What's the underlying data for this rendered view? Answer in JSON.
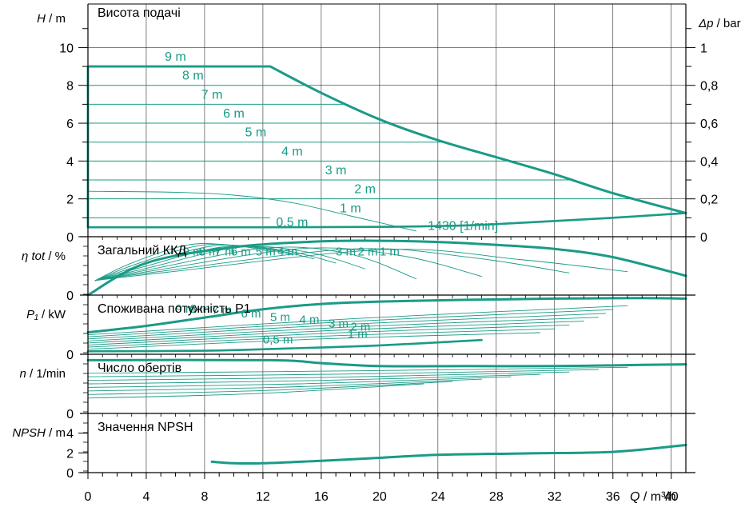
{
  "colors": {
    "curve": "#1a9b86",
    "axis": "#000000",
    "grid": "#000000",
    "background": "#ffffff"
  },
  "chart_data": {
    "type": "line",
    "x_axis": {
      "symbol": "Q",
      "unit": "/ m³/h",
      "range": [
        0,
        41
      ],
      "ticks": [
        0,
        4,
        8,
        12,
        16,
        20,
        24,
        28,
        32,
        36,
        40
      ],
      "tick_labels": [
        "0",
        "4",
        "8",
        "12",
        "16",
        "20",
        "24",
        "28",
        "32",
        "36",
        "40"
      ]
    },
    "panels": [
      {
        "id": "head",
        "title": "Висота подачі",
        "y_symbol": "H",
        "y_unit": "/ m",
        "y_range": [
          0,
          12.3
        ],
        "y_ticks": [
          0,
          2,
          4,
          6,
          8,
          10
        ],
        "y_tick_labels": [
          "0",
          "2",
          "4",
          "6",
          "8",
          "10"
        ],
        "y2_symbol": "Δp",
        "y2_unit": "/ bar",
        "y2_range": [
          0,
          1.23
        ],
        "y2_ticks": [
          0,
          0.2,
          0.4,
          0.6,
          0.8,
          1
        ],
        "y2_tick_labels": [
          "0",
          "0,2",
          "0,4",
          "0,6",
          "0,8",
          "1"
        ],
        "setpoint_lines": [
          {
            "label": "9 m",
            "head": 9
          },
          {
            "label": "8 m",
            "head": 8
          },
          {
            "label": "7 m",
            "head": 7
          },
          {
            "label": "6 m",
            "head": 6
          },
          {
            "label": "5 m",
            "head": 5
          },
          {
            "label": "4 m",
            "head": 4
          },
          {
            "label": "3 m",
            "head": 3
          },
          {
            "label": "2 m",
            "head": 2
          },
          {
            "label": "1 m",
            "head": 1
          },
          {
            "label": "0,5 m",
            "head": 0.5
          }
        ],
        "max_curve": {
          "x": [
            0,
            12.5,
            16,
            20,
            24,
            28,
            32,
            36,
            41
          ],
          "y": [
            9,
            9,
            7.6,
            6.2,
            5.1,
            4.2,
            3.3,
            2.3,
            1.25
          ]
        },
        "min_curve": {
          "x": [
            0,
            12,
            20,
            26,
            30,
            36,
            41
          ],
          "y": [
            0.5,
            0.5,
            0.52,
            0.6,
            0.75,
            1.0,
            1.25
          ]
        },
        "speed_curve": {
          "label": "1430 [1/min]",
          "x": [
            0,
            6,
            10,
            14,
            18,
            22.5
          ],
          "y": [
            2.4,
            2.35,
            2.2,
            1.8,
            1.1,
            0.3
          ]
        }
      },
      {
        "id": "efficiency",
        "title": "Загальний ККД",
        "y_symbol": "η tot",
        "y_unit": "/ %",
        "y_range": [
          0,
          1
        ],
        "y_ticks": [
          0
        ],
        "y_tick_labels": [
          "0"
        ],
        "curve_labels": [
          "9 m",
          "8 m",
          "7 m",
          "6 m",
          "5 m",
          "4 m",
          "3 m",
          "2 m",
          "1 m"
        ],
        "max_curve": {
          "x": [
            0,
            4,
            10,
            16,
            20,
            24,
            28,
            32,
            36,
            41
          ],
          "y": [
            0,
            0.55,
            0.82,
            0.92,
            0.93,
            0.91,
            0.86,
            0.79,
            0.65,
            0.33
          ]
        }
      },
      {
        "id": "power",
        "title": "Споживана потужність P1",
        "y_symbol": "P₁",
        "y_unit": "/ kW",
        "y_range": [
          0,
          1
        ],
        "y_ticks": [
          0
        ],
        "y_tick_labels": [
          "0"
        ],
        "curve_labels": [
          "9 m",
          "8 m",
          "7 m",
          "6 m",
          "5 m",
          "4 m",
          "3 m",
          "2 m",
          "1 m",
          "0,5 m"
        ],
        "max_curve": {
          "x": [
            0,
            4,
            8,
            12,
            16,
            20,
            26,
            32,
            38,
            41
          ],
          "y": [
            0.37,
            0.48,
            0.62,
            0.76,
            0.85,
            0.89,
            0.92,
            0.94,
            0.95,
            0.94
          ]
        },
        "min_curve": {
          "x": [
            0,
            8,
            14,
            20,
            27
          ],
          "y": [
            0.05,
            0.06,
            0.1,
            0.15,
            0.24
          ]
        }
      },
      {
        "id": "speed",
        "title": "Число обертів",
        "y_symbol": "n",
        "y_unit": "/ 1/min",
        "y_range": [
          0,
          1
        ],
        "y_ticks": [
          0
        ],
        "y_tick_labels": [
          "0"
        ],
        "max_curve": {
          "x": [
            0,
            12.5,
            16,
            20,
            26,
            32,
            38,
            41
          ],
          "y": [
            0.9,
            0.9,
            0.85,
            0.8,
            0.8,
            0.8,
            0.82,
            0.83
          ]
        }
      },
      {
        "id": "npsh",
        "title": "Значення NPSH",
        "y_symbol": "NPSH",
        "y_unit": "/ m",
        "y_range": [
          0,
          6
        ],
        "y_ticks": [
          0,
          2,
          4
        ],
        "y_tick_labels": [
          "0",
          "2",
          "4"
        ],
        "curve": {
          "x": [
            8.5,
            10,
            12,
            16,
            20,
            24,
            30,
            36,
            41
          ],
          "y": [
            1.1,
            0.95,
            0.95,
            1.2,
            1.5,
            1.8,
            1.95,
            2.1,
            2.8
          ]
        }
      }
    ]
  }
}
